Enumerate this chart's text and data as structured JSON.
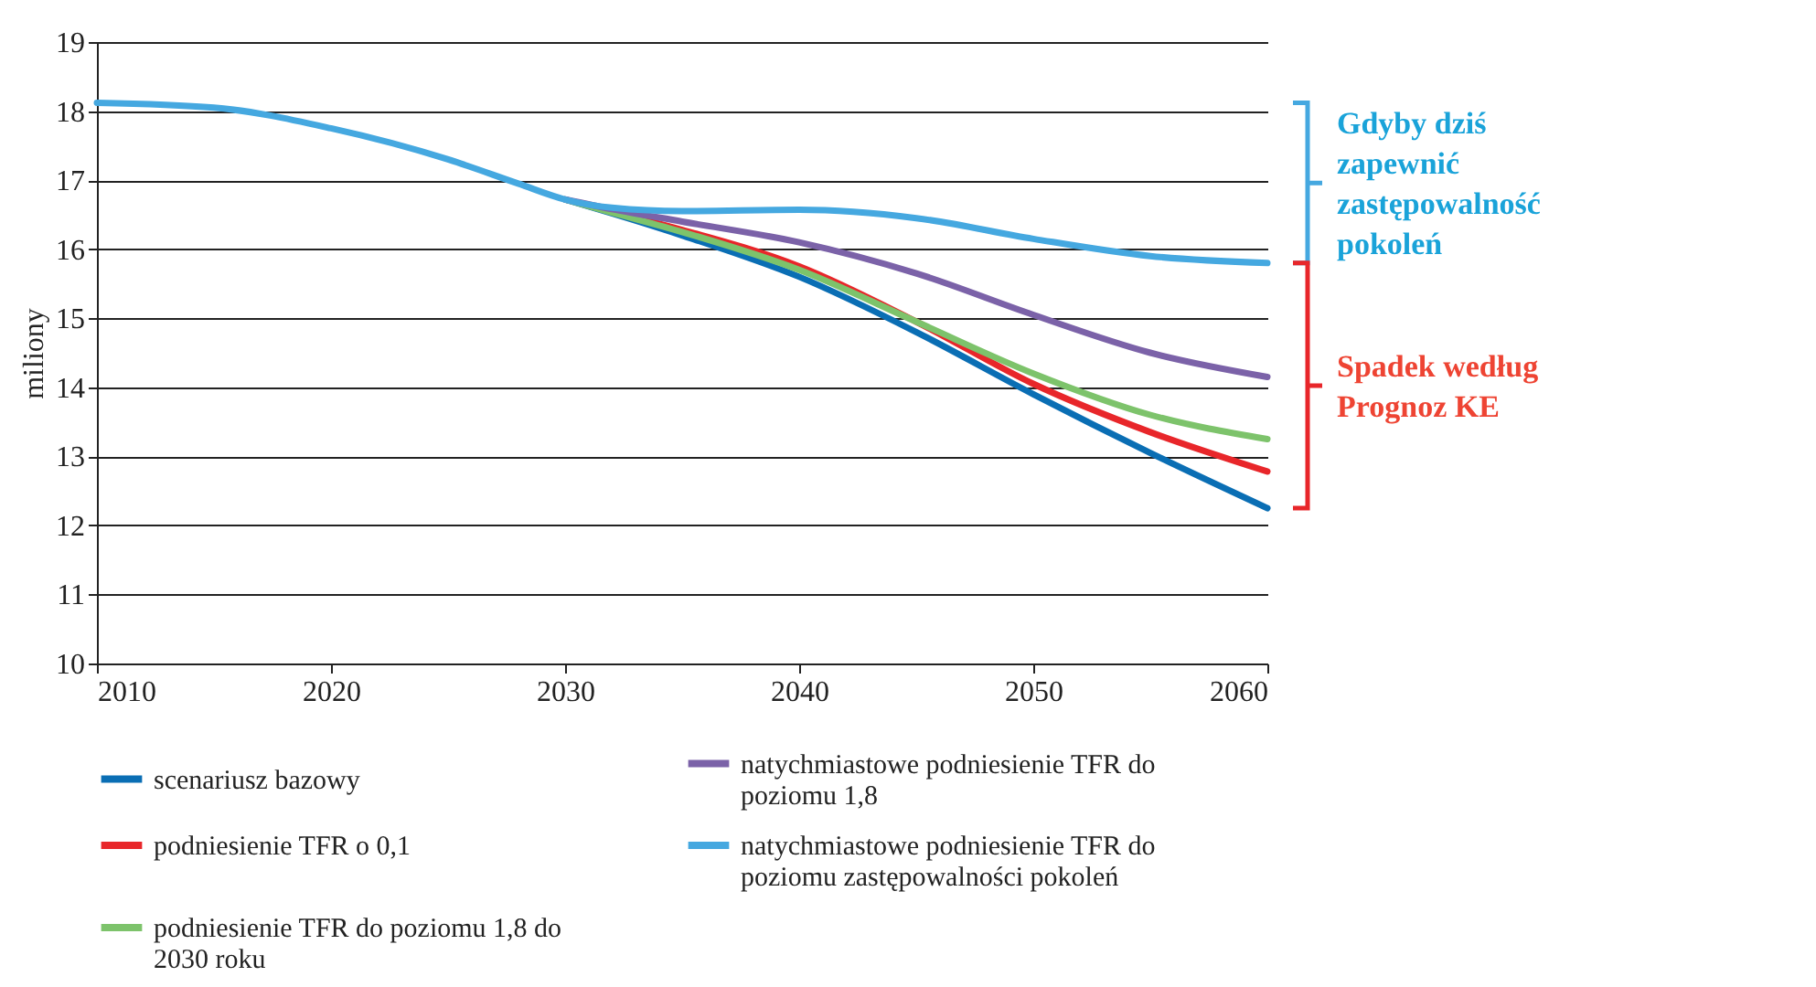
{
  "chart_data": {
    "type": "line",
    "ylabel": "miliony",
    "x": [
      2010,
      2015,
      2020,
      2025,
      2028,
      2030,
      2032,
      2035,
      2040,
      2045,
      2050,
      2055,
      2060
    ],
    "xlim": [
      2010,
      2060
    ],
    "xticks": [
      2010,
      2020,
      2030,
      2040,
      2050,
      2060
    ],
    "ylim": [
      10,
      19
    ],
    "yticks": [
      10,
      11,
      12,
      13,
      14,
      15,
      16,
      17,
      18,
      19
    ],
    "grid": "y",
    "legend": "bottom",
    "line_style": "solid",
    "series": [
      {
        "name": "scenariusz bazowy",
        "color": "#0a6eb4",
        "values": [
          null,
          null,
          null,
          null,
          null,
          16.72,
          16.52,
          16.2,
          15.6,
          14.8,
          13.9,
          13.05,
          12.25
        ]
      },
      {
        "name": "podniesienie TFR o 0,1",
        "color": "#e8262a",
        "values": [
          null,
          null,
          null,
          null,
          null,
          null,
          16.54,
          16.28,
          15.75,
          14.95,
          14.05,
          13.35,
          12.78
        ]
      },
      {
        "name": "podniesienie TFR do poziomu 1,8 do 2030 roku",
        "color": "#7dc36b",
        "values": [
          null,
          null,
          null,
          null,
          null,
          16.72,
          16.53,
          16.25,
          15.7,
          14.95,
          14.2,
          13.6,
          13.25
        ]
      },
      {
        "name": "natychmiastowe podniesienie TFR do poziomu 1,8",
        "color": "#7b62a8",
        "values": [
          null,
          null,
          null,
          null,
          null,
          16.72,
          16.58,
          16.4,
          16.1,
          15.65,
          15.05,
          14.5,
          14.15
        ]
      },
      {
        "name": "natychmiastowe podniesienie TFR do poziomu zastępowalności pokoleń",
        "color": "#45a8e0",
        "values": [
          18.12,
          18.05,
          17.75,
          17.3,
          16.95,
          16.72,
          16.6,
          16.55,
          16.57,
          16.45,
          16.15,
          15.9,
          15.8
        ]
      }
    ],
    "annotations": [
      "Gdyby dziś zapewnić zastępowalność pokoleń",
      "Spadek według Prognoz KE"
    ]
  }
}
